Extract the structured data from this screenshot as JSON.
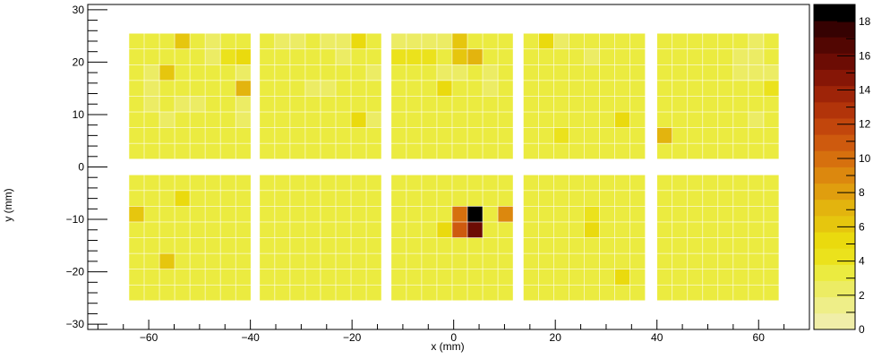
{
  "chart_data": {
    "type": "heatmap",
    "title": "",
    "xlabel": "x (mm)",
    "ylabel": "y (mm)",
    "xlim": [
      -72,
      70
    ],
    "ylim": [
      -31,
      31
    ],
    "x_major_ticks": [
      -60,
      -40,
      -20,
      0,
      20,
      40,
      60
    ],
    "y_major_ticks": [
      -30,
      -20,
      -10,
      0,
      10,
      20,
      30
    ],
    "x_tick_labels": [
      "−60",
      "−40",
      "−20",
      "0",
      "20",
      "40",
      "60"
    ],
    "y_tick_labels": [
      "−30",
      "−20",
      "−10",
      "0",
      "10",
      "20",
      "30"
    ],
    "cell_size_mm": 2.9,
    "grid": "off",
    "colorbar": {
      "min": 0,
      "max": 19,
      "ticks": [
        0,
        2,
        4,
        6,
        8,
        10,
        12,
        14,
        16,
        18
      ],
      "tick_labels": [
        "0",
        "2",
        "4",
        "6",
        "8",
        "10",
        "12",
        "14",
        "16",
        "18"
      ],
      "palette": [
        "#F0EEA8",
        "#EEEE88",
        "#ECEC64",
        "#EBEB40",
        "#EBE21C",
        "#EADA0E",
        "#E6C60E",
        "#E3B40E",
        "#E09E0E",
        "#DC880E",
        "#D6700E",
        "#CE5A0E",
        "#C2460C",
        "#B2340A",
        "#9E2408",
        "#861606",
        "#6C0C04",
        "#520602",
        "#360202",
        "#000000"
      ]
    },
    "x_centers": [
      -62.4,
      -59.4,
      -56.4,
      -53.4,
      -50.4,
      -47.4,
      -44.4,
      -41.4,
      -36.7,
      -33.7,
      -30.7,
      -27.7,
      -24.7,
      -21.7,
      -18.7,
      -15.7,
      -10.8,
      -7.8,
      -4.8,
      -1.8,
      1.2,
      4.2,
      7.2,
      10.2,
      15.2,
      18.2,
      21.2,
      24.2,
      27.2,
      30.2,
      33.2,
      36.2,
      41.5,
      44.5,
      47.5,
      50.5,
      53.5,
      56.5,
      59.5,
      62.5
    ],
    "y_centers": [
      24.0,
      21.0,
      18.0,
      15.0,
      12.0,
      9.0,
      6.0,
      3.0,
      -3.0,
      -6.0,
      -9.0,
      -12.0,
      -15.0,
      -18.0,
      -21.0,
      -24.0
    ],
    "values": [
      [
        3,
        3,
        3,
        6,
        3,
        2,
        3,
        3,
        3,
        2,
        2,
        3,
        2,
        2,
        5,
        3,
        2,
        2,
        2,
        2,
        6,
        3,
        3,
        3,
        3,
        5,
        2,
        3,
        3,
        3,
        3,
        3,
        3,
        3,
        3,
        3,
        3,
        3,
        2,
        3
      ],
      [
        3,
        3,
        3,
        3,
        3,
        2,
        4,
        5,
        3,
        3,
        3,
        3,
        3,
        2,
        3,
        3,
        4,
        4,
        4,
        3,
        6,
        7,
        3,
        3,
        3,
        3,
        3,
        3,
        2,
        3,
        3,
        3,
        3,
        3,
        3,
        3,
        3,
        2,
        2,
        3
      ],
      [
        3,
        2,
        6,
        3,
        3,
        3,
        3,
        2,
        3,
        3,
        3,
        3,
        3,
        3,
        3,
        2,
        3,
        3,
        3,
        2,
        2,
        3,
        2,
        3,
        3,
        3,
        3,
        3,
        3,
        3,
        3,
        3,
        3,
        3,
        3,
        3,
        3,
        2,
        2,
        2
      ],
      [
        3,
        2,
        3,
        3,
        3,
        3,
        3,
        7,
        3,
        3,
        3,
        2,
        2,
        3,
        3,
        3,
        3,
        3,
        3,
        5,
        3,
        3,
        2,
        3,
        3,
        3,
        3,
        3,
        3,
        3,
        3,
        3,
        3,
        3,
        3,
        3,
        3,
        3,
        3,
        4
      ],
      [
        3,
        2,
        3,
        2,
        2,
        3,
        3,
        2,
        3,
        3,
        3,
        3,
        3,
        3,
        3,
        3,
        3,
        3,
        3,
        3,
        3,
        3,
        3,
        3,
        3,
        3,
        3,
        3,
        3,
        3,
        3,
        3,
        3,
        3,
        3,
        3,
        3,
        3,
        3,
        3
      ],
      [
        3,
        3,
        2,
        3,
        3,
        3,
        3,
        2,
        3,
        3,
        3,
        3,
        3,
        3,
        5,
        2,
        3,
        3,
        3,
        3,
        3,
        3,
        3,
        3,
        3,
        3,
        3,
        3,
        3,
        3,
        5,
        3,
        3,
        3,
        3,
        3,
        3,
        3,
        2,
        3
      ],
      [
        3,
        3,
        3,
        3,
        3,
        3,
        3,
        3,
        3,
        3,
        3,
        3,
        3,
        3,
        3,
        3,
        3,
        3,
        3,
        3,
        3,
        3,
        3,
        3,
        3,
        3,
        4,
        3,
        3,
        3,
        3,
        3,
        7,
        3,
        3,
        3,
        3,
        3,
        3,
        3
      ],
      [
        3,
        3,
        3,
        3,
        3,
        3,
        3,
        3,
        3,
        3,
        3,
        3,
        3,
        3,
        3,
        3,
        3,
        3,
        3,
        3,
        3,
        3,
        3,
        3,
        3,
        3,
        3,
        3,
        3,
        3,
        3,
        3,
        3,
        3,
        3,
        3,
        3,
        3,
        3,
        3
      ],
      [
        3,
        3,
        3,
        3,
        3,
        3,
        3,
        3,
        3,
        3,
        3,
        3,
        3,
        3,
        3,
        3,
        3,
        3,
        3,
        3,
        3,
        3,
        3,
        3,
        3,
        3,
        3,
        3,
        3,
        3,
        3,
        3,
        3,
        3,
        3,
        3,
        3,
        3,
        3,
        3
      ],
      [
        3,
        3,
        3,
        5,
        3,
        3,
        3,
        3,
        3,
        3,
        3,
        3,
        3,
        3,
        3,
        3,
        3,
        3,
        3,
        3,
        3,
        3,
        3,
        3,
        3,
        3,
        3,
        3,
        3,
        3,
        3,
        3,
        3,
        3,
        3,
        3,
        3,
        3,
        3,
        3
      ],
      [
        6,
        3,
        3,
        3,
        3,
        3,
        3,
        3,
        3,
        3,
        3,
        3,
        3,
        3,
        3,
        3,
        3,
        3,
        3,
        3,
        10,
        19,
        3,
        9,
        3,
        3,
        3,
        3,
        4,
        3,
        3,
        3,
        3,
        3,
        3,
        3,
        3,
        3,
        3,
        3
      ],
      [
        3,
        3,
        3,
        3,
        3,
        3,
        3,
        3,
        3,
        3,
        3,
        3,
        3,
        3,
        3,
        3,
        3,
        3,
        3,
        5,
        11,
        16,
        3,
        3,
        3,
        3,
        3,
        3,
        5,
        3,
        3,
        3,
        3,
        3,
        3,
        3,
        3,
        3,
        3,
        3
      ],
      [
        3,
        3,
        3,
        3,
        3,
        3,
        3,
        3,
        3,
        3,
        3,
        3,
        3,
        3,
        3,
        3,
        3,
        3,
        3,
        3,
        3,
        3,
        3,
        3,
        3,
        3,
        3,
        3,
        3,
        3,
        3,
        3,
        3,
        3,
        3,
        3,
        3,
        3,
        3,
        3
      ],
      [
        3,
        3,
        6,
        3,
        3,
        3,
        3,
        3,
        3,
        3,
        3,
        3,
        3,
        3,
        3,
        3,
        3,
        3,
        3,
        3,
        3,
        3,
        3,
        3,
        3,
        3,
        3,
        3,
        3,
        3,
        3,
        3,
        3,
        3,
        3,
        3,
        3,
        3,
        3,
        3
      ],
      [
        3,
        3,
        3,
        3,
        3,
        3,
        3,
        3,
        3,
        3,
        3,
        3,
        3,
        3,
        3,
        3,
        3,
        3,
        3,
        3,
        3,
        3,
        3,
        3,
        3,
        3,
        3,
        3,
        3,
        3,
        5,
        3,
        3,
        3,
        3,
        3,
        3,
        3,
        3,
        3
      ],
      [
        3,
        3,
        3,
        3,
        3,
        3,
        3,
        3,
        3,
        3,
        3,
        3,
        3,
        3,
        3,
        3,
        3,
        3,
        3,
        3,
        3,
        3,
        3,
        3,
        3,
        3,
        3,
        3,
        3,
        3,
        3,
        3,
        3,
        3,
        3,
        3,
        3,
        3,
        3,
        3
      ]
    ]
  }
}
